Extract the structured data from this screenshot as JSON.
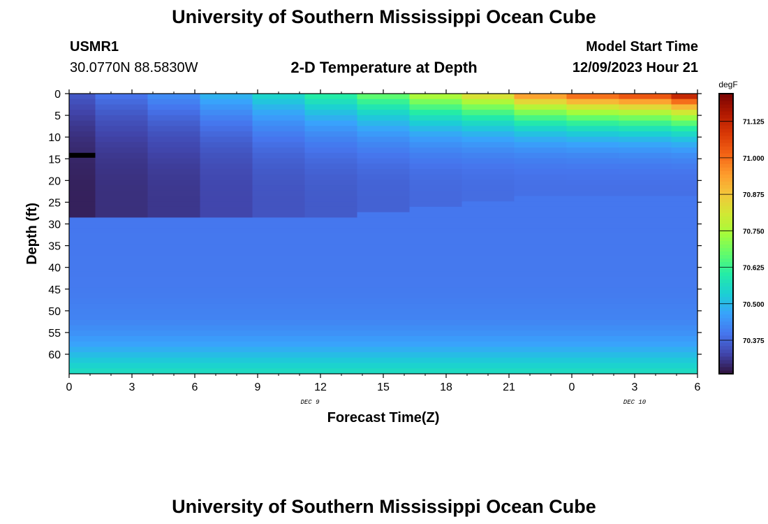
{
  "header": {
    "title": "University of Southern Mississippi Ocean Cube",
    "station_id": "USMR1",
    "location": "30.0770N  88.5830W",
    "subtitle": "2-D Temperature at Depth",
    "model_start_label": "Model Start Time",
    "model_start_value": "12/09/2023 Hour 21"
  },
  "footer": {
    "title": "University of Southern Mississippi Ocean Cube"
  },
  "colors": {
    "turbo": [
      "#30123b",
      "#4145ab",
      "#4675ed",
      "#39a2fc",
      "#1bcfd4",
      "#24eca6",
      "#61fc6c",
      "#a4fc3b",
      "#d1e834",
      "#f3c63a",
      "#fe9b2d",
      "#f36315",
      "#d93806",
      "#b11901",
      "#7a0402"
    ]
  },
  "chart_data": {
    "type": "heatmap",
    "title": "2-D Temperature at Depth",
    "xlabel": "Forecast Time(Z)",
    "ylabel": "Depth (ft)",
    "x_ticks": [
      "0",
      "3",
      "6",
      "9",
      "12",
      "15",
      "18",
      "21",
      "0",
      "3",
      "6"
    ],
    "x_hours": [
      0,
      3,
      6,
      9,
      12,
      15,
      18,
      21,
      24,
      27,
      30
    ],
    "date_labels": [
      {
        "label": "DEC 9",
        "hour": 11.5
      },
      {
        "label": "DEC 10",
        "hour": 27.0
      }
    ],
    "y_ticks": [
      0,
      5,
      10,
      15,
      20,
      25,
      30,
      35,
      40,
      45,
      50,
      55,
      60
    ],
    "ylim": [
      64.5,
      0
    ],
    "xlim": [
      0,
      30
    ],
    "colorbar": {
      "unit": "degF",
      "ticks": [
        "71.125",
        "71.000",
        "70.875",
        "70.750",
        "70.625",
        "70.500",
        "70.375"
      ],
      "tick_values": [
        71.125,
        71.0,
        70.875,
        70.75,
        70.625,
        70.5,
        70.375
      ],
      "range": [
        70.26,
        71.22
      ]
    },
    "marker": {
      "hour_start": 0,
      "hour_end": 1.25,
      "depth": 14.2
    },
    "columns": [
      {
        "hour_start": 0.0,
        "hour_end": 1.25,
        "surface": 70.36,
        "upper_bottom": 70.28,
        "upper_depth": 29
      },
      {
        "hour_start": 1.25,
        "hour_end": 3.75,
        "surface": 70.4,
        "upper_bottom": 70.3,
        "upper_depth": 29
      },
      {
        "hour_start": 3.75,
        "hour_end": 6.25,
        "surface": 70.44,
        "upper_bottom": 70.31,
        "upper_depth": 29
      },
      {
        "hour_start": 6.25,
        "hour_end": 8.75,
        "surface": 70.5,
        "upper_bottom": 70.33,
        "upper_depth": 28.5
      },
      {
        "hour_start": 8.75,
        "hour_end": 11.25,
        "surface": 70.56,
        "upper_bottom": 70.35,
        "upper_depth": 28.5
      },
      {
        "hour_start": 11.25,
        "hour_end": 13.75,
        "surface": 70.62,
        "upper_bottom": 70.36,
        "upper_depth": 28
      },
      {
        "hour_start": 13.75,
        "hour_end": 16.25,
        "surface": 70.69,
        "upper_bottom": 70.37,
        "upper_depth": 27
      },
      {
        "hour_start": 16.25,
        "hour_end": 18.75,
        "surface": 70.78,
        "upper_bottom": 70.38,
        "upper_depth": 26
      },
      {
        "hour_start": 18.75,
        "hour_end": 21.25,
        "surface": 70.86,
        "upper_bottom": 70.385,
        "upper_depth": 25
      },
      {
        "hour_start": 21.25,
        "hour_end": 23.75,
        "surface": 70.98,
        "upper_bottom": 70.39,
        "upper_depth": 24
      },
      {
        "hour_start": 23.75,
        "hour_end": 26.25,
        "surface": 71.05,
        "upper_bottom": 70.39,
        "upper_depth": 24
      },
      {
        "hour_start": 26.25,
        "hour_end": 28.75,
        "surface": 71.09,
        "upper_bottom": 70.39,
        "upper_depth": 24
      },
      {
        "hour_start": 28.75,
        "hour_end": 30.0,
        "surface": 71.18,
        "upper_bottom": 70.39,
        "upper_depth": 24
      }
    ],
    "deep_profile": [
      {
        "depth": 30,
        "value": 70.4
      },
      {
        "depth": 45,
        "value": 70.405
      },
      {
        "depth": 52,
        "value": 70.42
      },
      {
        "depth": 55,
        "value": 70.44
      },
      {
        "depth": 58,
        "value": 70.47
      },
      {
        "depth": 61,
        "value": 70.52
      },
      {
        "depth": 64.5,
        "value": 70.57
      }
    ]
  }
}
